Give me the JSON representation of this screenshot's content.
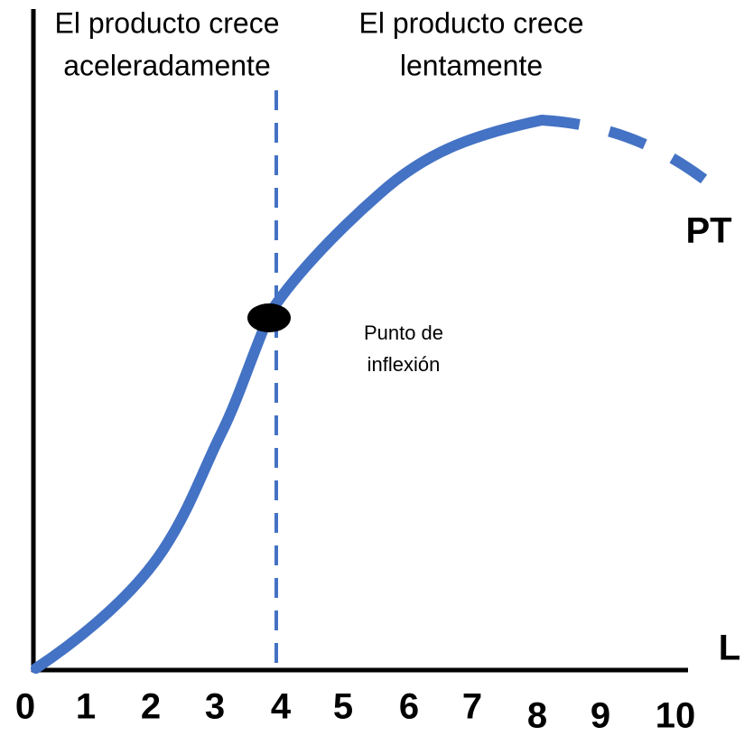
{
  "headings": {
    "left": [
      "El producto crece",
      "aceleradamente"
    ],
    "right": [
      "El producto crece",
      "lentamente"
    ]
  },
  "curve_label": "PT",
  "x_axis": {
    "label": "L",
    "ticks": [
      0,
      1,
      2,
      3,
      4,
      5,
      6,
      7,
      8,
      9,
      10
    ]
  },
  "inflection_label": [
    "Punto de",
    "inflexión"
  ]
}
